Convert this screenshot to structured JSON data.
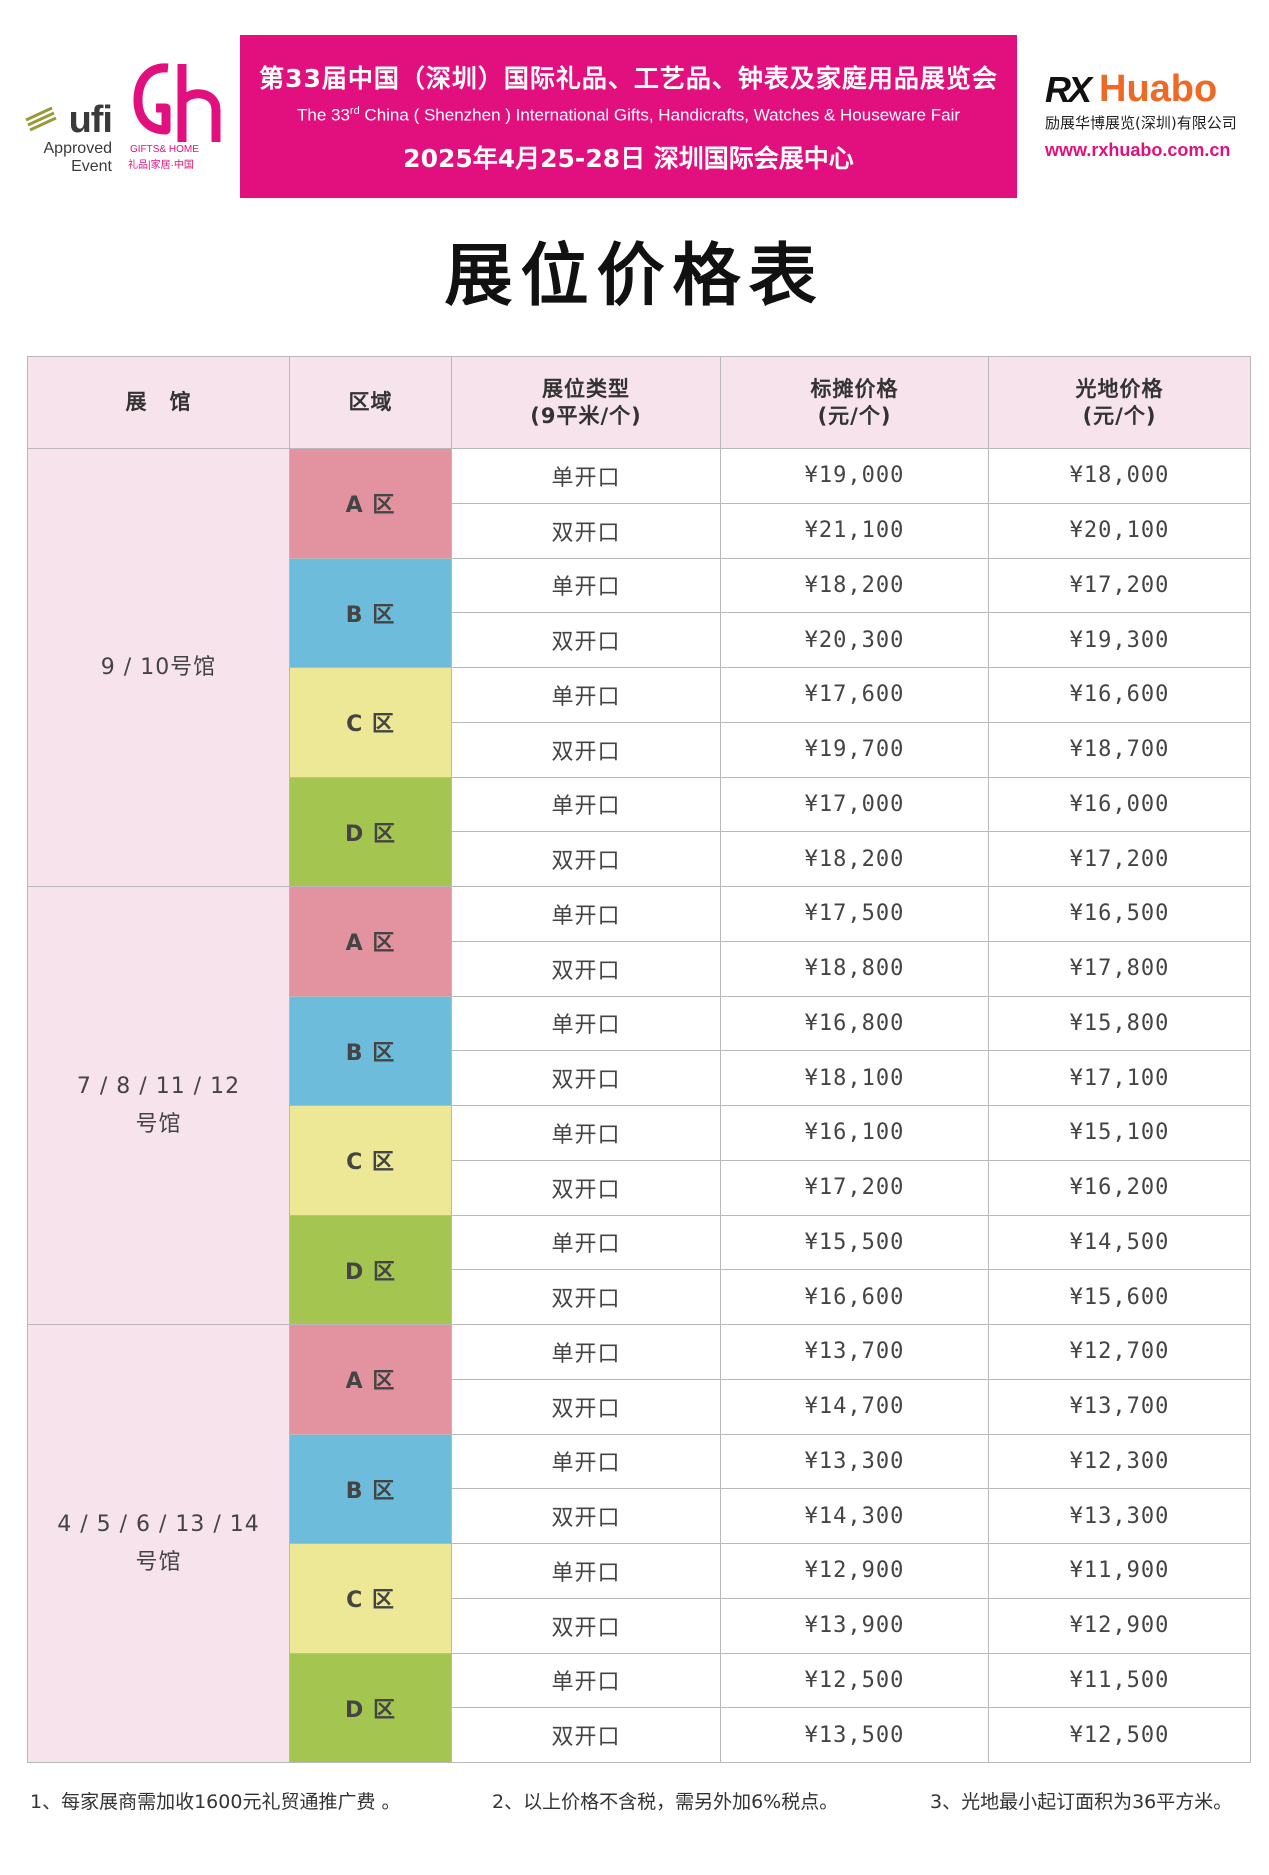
{
  "logos": {
    "ufi_word": "ufi",
    "ufi_approved": "Approved",
    "ufi_event": "Event",
    "gh_sub": "GIFTS& HOME",
    "gh_cn": "礼品|家居·中国"
  },
  "banner": {
    "title_cn": "第33届中国（深圳）国际礼品、工艺品、钟表及家庭用品展览会",
    "title_en_pre": "The 33",
    "title_en_sup": "rd",
    "title_en_post": " China ( Shenzhen ) International Gifts, Handicrafts, Watches & Houseware Fair",
    "date_venue": "2025年4月25-28日   深圳国际会展中心",
    "color": "#e2107e"
  },
  "organizer": {
    "mark": "RX",
    "name": "Huabo",
    "company": "励展华博展览(深圳)有限公司",
    "url": "www.rxhuabo.com.cn"
  },
  "page_title": "展位价格表",
  "table": {
    "headers": {
      "hall": "展　馆",
      "zone": "区域",
      "type_line1": "展位类型",
      "type_line2": "(9平米/个)",
      "standard_line1": "标摊价格",
      "standard_line2": "(元/个)",
      "raw_line1": "光地价格",
      "raw_line2": "(元/个)"
    },
    "zone_colors": {
      "A": "#e2939f",
      "B": "#6dbcdc",
      "C": "#ede896",
      "D": "#a4c651"
    },
    "groups": [
      {
        "hall_line1": "9 / 10号馆",
        "hall_line2": "",
        "zones": [
          {
            "zone": "A",
            "label": "A 区",
            "rows": [
              {
                "type": "单开口",
                "standard": "¥19,000",
                "raw": "¥18,000"
              },
              {
                "type": "双开口",
                "standard": "¥21,100",
                "raw": "¥20,100"
              }
            ]
          },
          {
            "zone": "B",
            "label": "B 区",
            "rows": [
              {
                "type": "单开口",
                "standard": "¥18,200",
                "raw": "¥17,200"
              },
              {
                "type": "双开口",
                "standard": "¥20,300",
                "raw": "¥19,300"
              }
            ]
          },
          {
            "zone": "C",
            "label": "C 区",
            "rows": [
              {
                "type": "单开口",
                "standard": "¥17,600",
                "raw": "¥16,600"
              },
              {
                "type": "双开口",
                "standard": "¥19,700",
                "raw": "¥18,700"
              }
            ]
          },
          {
            "zone": "D",
            "label": "D 区",
            "rows": [
              {
                "type": "单开口",
                "standard": "¥17,000",
                "raw": "¥16,000"
              },
              {
                "type": "双开口",
                "standard": "¥18,200",
                "raw": "¥17,200"
              }
            ]
          }
        ]
      },
      {
        "hall_line1": "7 / 8 / 11 / 12",
        "hall_line2": "号馆",
        "zones": [
          {
            "zone": "A",
            "label": "A 区",
            "rows": [
              {
                "type": "单开口",
                "standard": "¥17,500",
                "raw": "¥16,500"
              },
              {
                "type": "双开口",
                "standard": "¥18,800",
                "raw": "¥17,800"
              }
            ]
          },
          {
            "zone": "B",
            "label": "B 区",
            "rows": [
              {
                "type": "单开口",
                "standard": "¥16,800",
                "raw": "¥15,800"
              },
              {
                "type": "双开口",
                "standard": "¥18,100",
                "raw": "¥17,100"
              }
            ]
          },
          {
            "zone": "C",
            "label": "C 区",
            "rows": [
              {
                "type": "单开口",
                "standard": "¥16,100",
                "raw": "¥15,100"
              },
              {
                "type": "双开口",
                "standard": "¥17,200",
                "raw": "¥16,200"
              }
            ]
          },
          {
            "zone": "D",
            "label": "D 区",
            "rows": [
              {
                "type": "单开口",
                "standard": "¥15,500",
                "raw": "¥14,500"
              },
              {
                "type": "双开口",
                "standard": "¥16,600",
                "raw": "¥15,600"
              }
            ]
          }
        ]
      },
      {
        "hall_line1": "4 / 5 / 6 / 13 / 14",
        "hall_line2": "号馆",
        "zones": [
          {
            "zone": "A",
            "label": "A 区",
            "rows": [
              {
                "type": "单开口",
                "standard": "¥13,700",
                "raw": "¥12,700"
              },
              {
                "type": "双开口",
                "standard": "¥14,700",
                "raw": "¥13,700"
              }
            ]
          },
          {
            "zone": "B",
            "label": "B 区",
            "rows": [
              {
                "type": "单开口",
                "standard": "¥13,300",
                "raw": "¥12,300"
              },
              {
                "type": "双开口",
                "standard": "¥14,300",
                "raw": "¥13,300"
              }
            ]
          },
          {
            "zone": "C",
            "label": "C 区",
            "rows": [
              {
                "type": "单开口",
                "standard": "¥12,900",
                "raw": "¥11,900"
              },
              {
                "type": "双开口",
                "standard": "¥13,900",
                "raw": "¥12,900"
              }
            ]
          },
          {
            "zone": "D",
            "label": "D 区",
            "rows": [
              {
                "type": "单开口",
                "standard": "¥12,500",
                "raw": "¥11,500"
              },
              {
                "type": "双开口",
                "standard": "¥13,500",
                "raw": "¥12,500"
              }
            ]
          }
        ]
      }
    ]
  },
  "notes": [
    "1、每家展商需加收1600元礼贸通推广费 。",
    "2、以上价格不含税，需另外加6%税点。",
    "3、光地最小起订面积为36平方米。"
  ]
}
